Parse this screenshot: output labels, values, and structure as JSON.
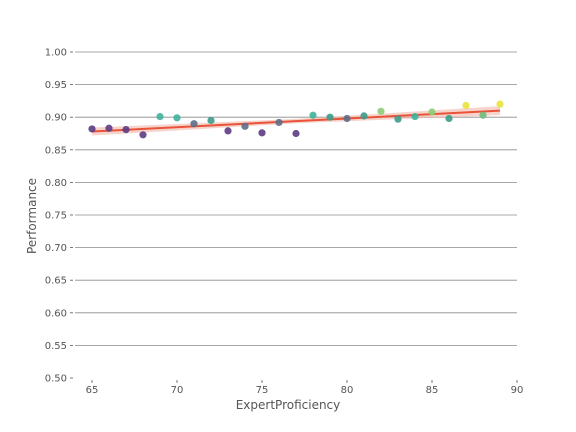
{
  "chart_data": {
    "type": "scatter",
    "title": "",
    "xlabel": "ExpertProficiency",
    "ylabel": "Performance",
    "xlim": [
      64,
      90
    ],
    "ylim": [
      0.5,
      1.0
    ],
    "xticks": [
      65,
      70,
      75,
      80,
      85,
      90
    ],
    "xtick_labels": [
      "65",
      "70",
      "75",
      "80",
      "85",
      "90"
    ],
    "yticks": [
      0.5,
      0.55,
      0.6,
      0.65,
      0.7,
      0.75,
      0.8,
      0.85,
      0.9,
      0.95,
      1.0
    ],
    "ytick_labels": [
      "0.50",
      "0.55",
      "0.60",
      "0.65",
      "0.70",
      "0.75",
      "0.80",
      "0.85",
      "0.90",
      "0.95",
      "1.00"
    ],
    "grid": "horizontal",
    "points": [
      {
        "x": 65,
        "y": 0.882,
        "color": "#5b3c83"
      },
      {
        "x": 66,
        "y": 0.883,
        "color": "#5b3c83"
      },
      {
        "x": 67,
        "y": 0.881,
        "color": "#5b3c83"
      },
      {
        "x": 68,
        "y": 0.873,
        "color": "#5b3c83"
      },
      {
        "x": 69,
        "y": 0.901,
        "color": "#3fb29b"
      },
      {
        "x": 70,
        "y": 0.899,
        "color": "#3fb29b"
      },
      {
        "x": 71,
        "y": 0.89,
        "color": "#5b6f8a"
      },
      {
        "x": 72,
        "y": 0.895,
        "color": "#3e9b8a"
      },
      {
        "x": 73,
        "y": 0.879,
        "color": "#5b3c83"
      },
      {
        "x": 74,
        "y": 0.886,
        "color": "#5b6f8a"
      },
      {
        "x": 75,
        "y": 0.876,
        "color": "#5b3c83"
      },
      {
        "x": 76,
        "y": 0.892,
        "color": "#5b6f8a"
      },
      {
        "x": 77,
        "y": 0.875,
        "color": "#5b3c83"
      },
      {
        "x": 78,
        "y": 0.903,
        "color": "#3fb29b"
      },
      {
        "x": 79,
        "y": 0.9,
        "color": "#3e9b8a"
      },
      {
        "x": 80,
        "y": 0.898,
        "color": "#5b6f8a"
      },
      {
        "x": 81,
        "y": 0.902,
        "color": "#3e9b8a"
      },
      {
        "x": 82,
        "y": 0.909,
        "color": "#8ccd74"
      },
      {
        "x": 83,
        "y": 0.897,
        "color": "#3e9b8a"
      },
      {
        "x": 84,
        "y": 0.901,
        "color": "#3fb29b"
      },
      {
        "x": 85,
        "y": 0.908,
        "color": "#8ccd74"
      },
      {
        "x": 86,
        "y": 0.898,
        "color": "#3e9b8a"
      },
      {
        "x": 87,
        "y": 0.918,
        "color": "#e8e33b"
      },
      {
        "x": 88,
        "y": 0.903,
        "color": "#6ebd7e"
      },
      {
        "x": 89,
        "y": 0.92,
        "color": "#e8e33b"
      }
    ],
    "trendline": {
      "x": [
        65,
        89
      ],
      "y": [
        0.878,
        0.91
      ],
      "color": "#e8533a",
      "band_color": "#f2b8a8"
    }
  }
}
